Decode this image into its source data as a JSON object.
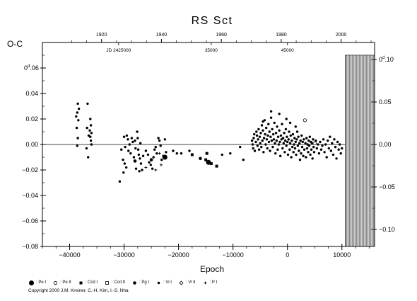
{
  "chart_data": {
    "type": "scatter",
    "title": "RS Sct",
    "ylabel": "O-C",
    "xlabel": "Epoch",
    "xlim": [
      -45000,
      16000
    ],
    "ylim": [
      -0.08,
      0.08
    ],
    "x_ticks": [
      -40000,
      -30000,
      -20000,
      -10000,
      0,
      10000
    ],
    "x_tick_labels": [
      "−40000",
      "−30000",
      "−20000",
      "−10000",
      "0",
      "10000"
    ],
    "y_ticks_left": [
      -0.08,
      -0.06,
      -0.04,
      -0.02,
      0.0,
      0.02,
      0.04,
      0.06
    ],
    "y_tick_labels_left": [
      "−0.08",
      "−0.06",
      "−0.04",
      "−0.02",
      "0.00",
      "0.02",
      "0.04",
      "0"
    ],
    "y_tick_label_left_top_sup": "d",
    "y_tick_label_left_top_rest": ".06",
    "y_ticks_right": [
      -0.1,
      -0.05,
      0.0,
      0.05,
      0.1
    ],
    "y_tick_labels_right": [
      "−0.10",
      "−0.05",
      "0.00",
      "0.05",
      "0"
    ],
    "y_tick_label_right_top_sup": "d",
    "y_tick_label_right_top_rest": ".10",
    "year_ticks": [
      1920,
      1940,
      1960,
      1980,
      2000
    ],
    "year_tick_labels": [
      "1920",
      "1940",
      "1960",
      "1980",
      "2000"
    ],
    "jd_labels": [
      {
        "text": "JD 2425000",
        "epoch": -31000
      },
      {
        "text": "35000",
        "epoch": -14000
      },
      {
        "text": "45000",
        "epoch": 0
      }
    ],
    "hatched_range_epoch": [
      10600,
      16000
    ],
    "series": [
      {
        "name": "Pe I",
        "symbol": "filled-circle-large",
        "points": []
      },
      {
        "name": "Pe II",
        "symbol": "open-circle",
        "points": [
          [
            3200,
            0.019
          ],
          [
            5000,
            0.001
          ]
        ]
      },
      {
        "name": "Ccd I",
        "symbol": "filled-square",
        "points": [
          [
            -17500,
            -0.008
          ],
          [
            -15000,
            -0.012
          ],
          [
            -14000,
            -0.015
          ],
          [
            -13000,
            -0.017
          ],
          [
            -14800,
            -0.007
          ]
        ]
      },
      {
        "name": "Ccd II",
        "symbol": "open-square",
        "points": []
      },
      {
        "name": "Pg I",
        "symbol": "filled-circle-medium",
        "points": [
          [
            -16000,
            -0.011
          ],
          [
            -25000,
            -0.012
          ],
          [
            -28000,
            -0.013
          ]
        ]
      },
      {
        "name": "Vi I",
        "symbol": "filled-circle-small",
        "points": [
          [
            -38500,
            0.032
          ],
          [
            -38600,
            0.025
          ],
          [
            -38400,
            0.019
          ],
          [
            -38700,
            0.013
          ],
          [
            -38500,
            0.005
          ],
          [
            -38600,
            -0.001
          ],
          [
            -38300,
            0.028
          ],
          [
            -38800,
            0.022
          ],
          [
            -36700,
            0.032
          ],
          [
            -36800,
            0.013
          ],
          [
            -36500,
            0.007
          ],
          [
            -36900,
            -0.003
          ],
          [
            -36600,
            -0.01
          ],
          [
            -36200,
            0.02
          ],
          [
            -36100,
            0.015
          ],
          [
            -36300,
            0.011
          ],
          [
            -36000,
            0.009
          ],
          [
            -36200,
            0.006
          ],
          [
            -36100,
            0.003
          ],
          [
            -36000,
            0.0
          ],
          [
            -30800,
            -0.029
          ],
          [
            -30500,
            -0.004
          ],
          [
            -30200,
            -0.012
          ],
          [
            -30000,
            0.006
          ],
          [
            -29800,
            -0.002
          ],
          [
            -29500,
            0.007
          ],
          [
            -29300,
            0.004
          ],
          [
            -29200,
            -0.005
          ],
          [
            -29000,
            0.0
          ],
          [
            -28800,
            -0.007
          ],
          [
            -28600,
            0.005
          ],
          [
            -28400,
            0.002
          ],
          [
            -28200,
            -0.01
          ],
          [
            -28000,
            0.003
          ],
          [
            -27900,
            -0.003
          ],
          [
            -27600,
            0.01
          ],
          [
            -27500,
            0.005
          ],
          [
            -27400,
            -0.004
          ],
          [
            -27300,
            -0.008
          ],
          [
            -27100,
            -0.011
          ],
          [
            -27000,
            0.001
          ],
          [
            -26900,
            -0.015
          ],
          [
            -26700,
            -0.02
          ],
          [
            -26500,
            -0.009
          ],
          [
            -29900,
            -0.015
          ],
          [
            -30100,
            -0.022
          ],
          [
            -29600,
            -0.018
          ],
          [
            -27800,
            -0.019
          ],
          [
            -27200,
            -0.021
          ],
          [
            -26000,
            -0.005
          ],
          [
            -25600,
            -0.008
          ],
          [
            -25400,
            -0.014
          ],
          [
            -25100,
            -0.016
          ],
          [
            -24800,
            -0.019
          ],
          [
            -24600,
            -0.01
          ],
          [
            -24400,
            -0.004
          ],
          [
            -24200,
            -0.002
          ],
          [
            -24000,
            -0.007
          ],
          [
            -23700,
            0.005
          ],
          [
            -23500,
            0.003
          ],
          [
            -23300,
            -0.001
          ],
          [
            -23100,
            -0.012
          ],
          [
            -22800,
            -0.009
          ],
          [
            -22500,
            0.004
          ],
          [
            -22300,
            -0.006
          ],
          [
            -21000,
            -0.005
          ],
          [
            -20300,
            -0.007
          ],
          [
            -19500,
            -0.007
          ],
          [
            -18000,
            -0.005
          ],
          [
            -12000,
            -0.008
          ],
          [
            -10500,
            -0.007
          ],
          [
            -8700,
            -0.002
          ],
          [
            -8100,
            -0.012
          ],
          [
            -6500,
            0.003
          ],
          [
            -6400,
            0.0
          ],
          [
            -6300,
            -0.003
          ],
          [
            -6200,
            0.005
          ],
          [
            -6100,
            0.008
          ],
          [
            -6000,
            -0.005
          ],
          [
            -5800,
            0.002
          ],
          [
            -5700,
            0.01
          ],
          [
            -5600,
            0.007
          ],
          [
            -5500,
            -0.001
          ],
          [
            -5400,
            0.004
          ],
          [
            -5300,
            0.012
          ],
          [
            -5200,
            -0.004
          ],
          [
            -5100,
            0.006
          ],
          [
            -5000,
            0.001
          ],
          [
            -4900,
            0.009
          ],
          [
            -4800,
            -0.002
          ],
          [
            -4700,
            0.015
          ],
          [
            -4600,
            0.003
          ],
          [
            -4500,
            0.011
          ],
          [
            -4400,
            -0.006
          ],
          [
            -4300,
            0.005
          ],
          [
            -4200,
            0.019
          ],
          [
            -4100,
            0.008
          ],
          [
            -4000,
            0.0
          ],
          [
            -3900,
            0.013
          ],
          [
            -3800,
            0.004
          ],
          [
            -3700,
            -0.003
          ],
          [
            -3600,
            0.007
          ],
          [
            -3500,
            0.016
          ],
          [
            -3400,
            0.002
          ],
          [
            -3300,
            0.01
          ],
          [
            -3200,
            -0.005
          ],
          [
            -3100,
            0.006
          ],
          [
            -3000,
            0.021
          ],
          [
            -2900,
            0.003
          ],
          [
            -2800,
            0.012
          ],
          [
            -2700,
            -0.002
          ],
          [
            -2600,
            0.008
          ],
          [
            -2500,
            0.004
          ],
          [
            -2400,
            0.017
          ],
          [
            -2300,
            0.001
          ],
          [
            -2200,
            -0.007
          ],
          [
            -2100,
            0.009
          ],
          [
            -2000,
            0.003
          ],
          [
            -1900,
            0.014
          ],
          [
            -1800,
            -0.004
          ],
          [
            -1700,
            0.006
          ],
          [
            -1600,
            0.0
          ],
          [
            -1500,
            0.011
          ],
          [
            -1400,
            0.002
          ],
          [
            -1300,
            -0.009
          ],
          [
            -1200,
            0.007
          ],
          [
            -1100,
            0.004
          ],
          [
            -1000,
            0.016
          ],
          [
            -900,
            -0.003
          ],
          [
            -800,
            0.005
          ],
          [
            -700,
            0.001
          ],
          [
            -600,
            0.009
          ],
          [
            -500,
            -0.006
          ],
          [
            -400,
            0.003
          ],
          [
            -300,
            0.012
          ],
          [
            -200,
            -0.001
          ],
          [
            -100,
            0.006
          ],
          [
            0,
            0.002
          ],
          [
            100,
            -0.008
          ],
          [
            200,
            0.004
          ],
          [
            300,
            0.01
          ],
          [
            400,
            -0.004
          ],
          [
            500,
            0.001
          ],
          [
            600,
            0.007
          ],
          [
            700,
            -0.01
          ],
          [
            800,
            0.003
          ],
          [
            900,
            -0.002
          ],
          [
            1000,
            0.008
          ],
          [
            1100,
            -0.006
          ],
          [
            1200,
            0.0
          ],
          [
            1300,
            0.005
          ],
          [
            1400,
            -0.003
          ],
          [
            1500,
            0.002
          ],
          [
            1600,
            -0.008
          ],
          [
            1700,
            0.004
          ],
          [
            1800,
            0.01
          ],
          [
            1900,
            -0.001
          ],
          [
            2000,
            0.006
          ],
          [
            2100,
            -0.005
          ],
          [
            2200,
            0.001
          ],
          [
            2300,
            -0.012
          ],
          [
            2400,
            0.003
          ],
          [
            2500,
            -0.007
          ],
          [
            2600,
            0.007
          ],
          [
            2700,
            -0.002
          ],
          [
            2800,
            0.002
          ],
          [
            2900,
            -0.009
          ],
          [
            3000,
            0.004
          ],
          [
            3100,
            -0.004
          ],
          [
            3300,
            0.001
          ],
          [
            3400,
            -0.01
          ],
          [
            3500,
            0.005
          ],
          [
            3600,
            -0.003
          ],
          [
            3700,
            0.0
          ],
          [
            3800,
            -0.006
          ],
          [
            3900,
            0.003
          ],
          [
            4000,
            -0.001
          ],
          [
            4100,
            0.006
          ],
          [
            4200,
            -0.008
          ],
          [
            4300,
            0.002
          ],
          [
            4400,
            -0.004
          ],
          [
            4500,
            0.001
          ],
          [
            4600,
            -0.011
          ],
          [
            4700,
            0.004
          ],
          [
            4800,
            -0.002
          ],
          [
            4900,
            -0.006
          ],
          [
            5200,
            0.003
          ],
          [
            5400,
            -0.003
          ],
          [
            5600,
            0.0
          ],
          [
            5800,
            -0.007
          ],
          [
            6000,
            0.002
          ],
          [
            6200,
            -0.004
          ],
          [
            6400,
            -0.001
          ],
          [
            6600,
            0.004
          ],
          [
            6800,
            -0.006
          ],
          [
            7000,
            0.0
          ],
          [
            7200,
            -0.01
          ],
          [
            7400,
            0.003
          ],
          [
            7600,
            -0.003
          ],
          [
            7800,
            0.006
          ],
          [
            8000,
            -0.005
          ],
          [
            8200,
            0.001
          ],
          [
            8400,
            -0.008
          ],
          [
            8600,
            0.004
          ],
          [
            8800,
            -0.002
          ],
          [
            9000,
            -0.011
          ],
          [
            9200,
            0.002
          ],
          [
            9400,
            -0.004
          ],
          [
            9600,
            0.0
          ],
          [
            9800,
            -0.007
          ],
          [
            10000,
            -0.003
          ],
          [
            -3000,
            0.026
          ],
          [
            -1500,
            0.024
          ],
          [
            -4500,
            0.018
          ],
          [
            500,
            0.017
          ],
          [
            -200,
            0.02
          ],
          [
            1500,
            0.014
          ]
        ]
      },
      {
        "name": "Vi II",
        "symbol": "open-diamond",
        "points": []
      },
      {
        "name": "P I",
        "symbol": "plus",
        "points": [
          [
            -26000,
            -0.018
          ],
          [
            -24200,
            -0.02
          ],
          [
            -23200,
            -0.016
          ],
          [
            -23500,
            -0.007
          ]
        ]
      }
    ],
    "big_points": [
      [
        -22500,
        -0.01
      ],
      [
        -14500,
        -0.014
      ]
    ]
  },
  "legend": [
    {
      "symbol": "filled-circle-large",
      "label": ": Pe I"
    },
    {
      "symbol": "open-circle",
      "label": ": Pe II"
    },
    {
      "symbol": "filled-square",
      "label": ": Ccd I"
    },
    {
      "symbol": "open-square",
      "label": ": Ccd II"
    },
    {
      "symbol": "filled-circle-medium",
      "label": ": Pg I"
    },
    {
      "symbol": "filled-circle-small",
      "label": ": Vi I"
    },
    {
      "symbol": "open-diamond",
      "label": ": Vi II"
    },
    {
      "symbol": "plus",
      "label": ": P I"
    }
  ],
  "copyright": "Copyright 2000 J.M. Kreiner, C.-H. Kim, I.-S. Nha"
}
